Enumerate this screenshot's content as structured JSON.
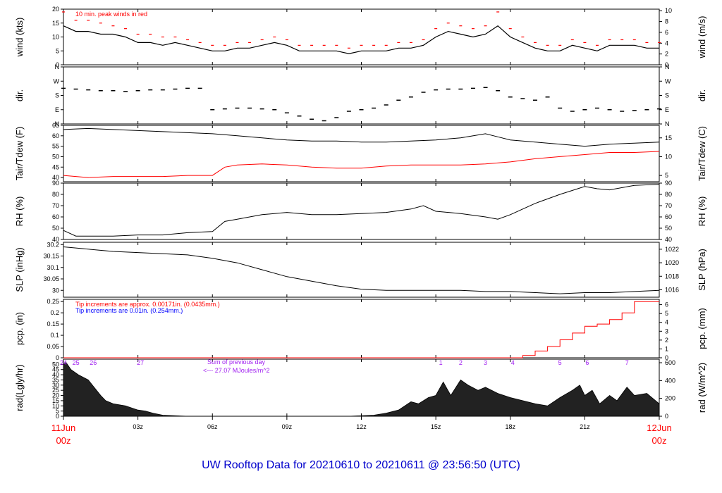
{
  "title": "UW Rooftop Data for 20210610  to  20210611 @ 23:56:50  (UTC)",
  "colors": {
    "axis": "#000000",
    "red": "#ff0000",
    "blue": "#0000ff",
    "purple": "#a020f0",
    "title": "#0000cc",
    "fill": "#222222"
  },
  "time_axis": {
    "start_label": [
      "11Jun",
      "00z"
    ],
    "end_label": [
      "12Jun",
      "00z"
    ],
    "ticks": [
      {
        "hour": 3,
        "label": "03z"
      },
      {
        "hour": 6,
        "label": "06z"
      },
      {
        "hour": 9,
        "label": "09z"
      },
      {
        "hour": 12,
        "label": "12z"
      },
      {
        "hour": 15,
        "label": "15z"
      },
      {
        "hour": 18,
        "label": "18z"
      },
      {
        "hour": 21,
        "label": "21z"
      }
    ]
  },
  "chart_data": [
    {
      "type": "line",
      "id": "wind",
      "ylabel": "wind (kts)",
      "ylabel_right": "wind (m/s)",
      "ylim": [
        0,
        20
      ],
      "yticks": [
        0,
        5,
        10,
        15,
        20
      ],
      "right_scale": 1.9438,
      "right_ticks": [
        0,
        2,
        4,
        6,
        8,
        10
      ],
      "annotation": "10 min. peak winds in red",
      "series": [
        {
          "style": "mean",
          "x": [
            0,
            0.5,
            1,
            1.5,
            2,
            2.5,
            3,
            3.5,
            4,
            4.5,
            5,
            5.5,
            6,
            6.5,
            7,
            7.5,
            8,
            8.5,
            9,
            9.5,
            10,
            10.5,
            11,
            11.5,
            12,
            12.5,
            13,
            13.5,
            14,
            14.5,
            15,
            15.5,
            16,
            16.5,
            17,
            17.5,
            18,
            18.5,
            19,
            19.5,
            20,
            20.5,
            21,
            21.5,
            22,
            22.5,
            23,
            23.5,
            24
          ],
          "y": [
            14,
            12,
            12,
            11,
            11,
            10,
            8,
            8,
            7,
            8,
            7,
            6,
            5,
            5,
            6,
            6,
            7,
            8,
            7,
            5,
            5,
            5,
            5,
            4,
            5,
            5,
            5,
            6,
            6,
            7,
            10,
            12,
            11,
            10,
            11,
            14,
            10,
            8,
            6,
            5,
            5,
            7,
            6,
            5,
            7,
            7,
            7,
            6,
            6
          ]
        },
        {
          "style": "peak",
          "x": [
            0,
            0.5,
            1,
            1.5,
            2,
            2.5,
            3,
            3.5,
            4,
            4.5,
            5,
            5.5,
            6,
            6.5,
            7,
            7.5,
            8,
            8.5,
            9,
            9.5,
            10,
            10.5,
            11,
            11.5,
            12,
            12.5,
            13,
            13.5,
            14,
            14.5,
            15,
            15.5,
            16,
            16.5,
            17,
            17.5,
            18,
            18.5,
            19,
            19.5,
            20,
            20.5,
            21,
            21.5,
            22,
            22.5,
            23,
            23.5,
            24
          ],
          "y": [
            19,
            16,
            16,
            15,
            14,
            13,
            11,
            11,
            10,
            10,
            9,
            8,
            7,
            7,
            8,
            8,
            9,
            10,
            9,
            7,
            7,
            7,
            7,
            6,
            7,
            7,
            7,
            8,
            8,
            9,
            13,
            15,
            14,
            13,
            14,
            19,
            13,
            10,
            8,
            7,
            7,
            9,
            8,
            7,
            9,
            9,
            9,
            8,
            8
          ]
        }
      ]
    },
    {
      "type": "scatter",
      "id": "dir",
      "ylabel": "dir.",
      "ylabel_right": "dir.",
      "ylim": [
        0,
        360
      ],
      "ytick_labels": [
        "N",
        "E",
        "S",
        "W",
        "N"
      ],
      "x": [
        0,
        0.5,
        1,
        1.5,
        2,
        2.5,
        3,
        3.5,
        4,
        4.5,
        5,
        5.5,
        6,
        6.5,
        7,
        7.5,
        8,
        8.5,
        9,
        9.5,
        10,
        10.5,
        11,
        11.5,
        12,
        12.5,
        13,
        13.5,
        14,
        14.5,
        15,
        15.5,
        16,
        16.5,
        17,
        17.5,
        18,
        18.5,
        19,
        19.5,
        20,
        20.5,
        21,
        21.5,
        22,
        22.5,
        23,
        23.5,
        24
      ],
      "y": [
        225,
        220,
        215,
        210,
        210,
        205,
        210,
        215,
        215,
        220,
        225,
        225,
        90,
        95,
        100,
        100,
        95,
        90,
        70,
        50,
        30,
        20,
        40,
        80,
        90,
        100,
        120,
        150,
        170,
        200,
        215,
        220,
        220,
        225,
        230,
        210,
        170,
        160,
        150,
        170,
        100,
        80,
        90,
        100,
        90,
        80,
        85,
        90,
        95
      ]
    },
    {
      "type": "line",
      "id": "temp",
      "ylabel": "Tair/Tdew (F)",
      "ylabel_right": "Tair/Tdew (C)",
      "ylim": [
        38,
        65
      ],
      "yticks": [
        40,
        45,
        50,
        55,
        60,
        65
      ],
      "right_ticks": [
        5,
        10,
        15
      ],
      "series": [
        {
          "style": "tair",
          "x": [
            0,
            1,
            2,
            3,
            4,
            5,
            6,
            7,
            8,
            9,
            10,
            11,
            12,
            13,
            14,
            15,
            16,
            17,
            17.5,
            18,
            19,
            20,
            21,
            22,
            23,
            24
          ],
          "y": [
            63,
            63.5,
            63,
            62.5,
            62,
            61.5,
            61,
            60,
            59,
            58,
            57.5,
            57.5,
            57,
            57,
            57.5,
            58,
            59,
            61,
            59.5,
            58,
            57,
            56,
            55,
            56,
            56.5,
            57
          ]
        },
        {
          "style": "tdew",
          "x": [
            0,
            1,
            2,
            3,
            4,
            5,
            6,
            6.5,
            7,
            8,
            9,
            10,
            11,
            12,
            13,
            14,
            15,
            16,
            17,
            18,
            19,
            20,
            21,
            22,
            23,
            24
          ],
          "y": [
            41,
            40,
            40.5,
            40.5,
            40.5,
            41,
            41,
            45,
            46,
            46.5,
            46,
            45,
            44.5,
            44.5,
            45.5,
            46,
            46,
            46,
            46.5,
            47.5,
            49,
            50,
            51,
            52,
            52,
            52.5
          ]
        }
      ]
    },
    {
      "type": "line",
      "id": "rh",
      "ylabel": "RH (%)",
      "ylabel_right": "RH (%)",
      "ylim": [
        40,
        90
      ],
      "yticks": [
        40,
        50,
        60,
        70,
        80,
        90
      ],
      "x": [
        0,
        0.5,
        1,
        2,
        3,
        4,
        5,
        6,
        6.5,
        7,
        8,
        9,
        10,
        11,
        12,
        13,
        14,
        14.5,
        15,
        16,
        17,
        17.5,
        18,
        18.5,
        19,
        20,
        21,
        21.5,
        22,
        23,
        24
      ],
      "y": [
        48,
        43,
        43,
        43,
        44,
        44,
        46,
        47,
        56,
        58,
        62,
        64,
        62,
        62,
        63,
        64,
        67,
        70,
        65,
        63,
        60,
        58,
        62,
        67,
        72,
        80,
        87,
        85,
        84,
        88,
        89
      ]
    },
    {
      "type": "line",
      "id": "slp",
      "ylabel": "SLP (inHg)",
      "ylabel_right": "SLP (hPa)",
      "ylim": [
        29.97,
        30.21
      ],
      "yticks": [
        30.0,
        30.05,
        30.1,
        30.15,
        30.2
      ],
      "right_ticks": [
        1016,
        1018,
        1020,
        1022
      ],
      "x": [
        0,
        1,
        2,
        3,
        4,
        5,
        6,
        7,
        8,
        9,
        10,
        11,
        12,
        13,
        14,
        15,
        16,
        17,
        18,
        19,
        20,
        21,
        22,
        23,
        24
      ],
      "y": [
        30.19,
        30.18,
        30.17,
        30.165,
        30.16,
        30.155,
        30.14,
        30.12,
        30.09,
        30.06,
        30.04,
        30.02,
        30.005,
        30.0,
        30.0,
        30.0,
        30.0,
        29.995,
        29.995,
        29.99,
        29.985,
        29.99,
        29.99,
        29.995,
        30.0
      ]
    },
    {
      "type": "area",
      "id": "pcp",
      "ylabel": "pcp. (in)",
      "ylabel_right": "pcp. (mm)",
      "ylim": [
        0,
        0.26
      ],
      "yticks": [
        0.0,
        0.05,
        0.1,
        0.15,
        0.2,
        0.25
      ],
      "right_ticks": [
        0,
        1,
        2,
        3,
        4,
        5,
        6
      ],
      "annotations": [
        "Tip increments are approx. 0.00171in. (0.0435mm.)",
        "Tip increments are 0.01in. (0.254mm.)"
      ],
      "x": [
        0,
        18.2,
        18.5,
        19,
        19.5,
        20,
        20.5,
        21,
        21.5,
        22,
        22.5,
        23,
        23.5,
        24
      ],
      "y": [
        0,
        0,
        0.01,
        0.03,
        0.05,
        0.08,
        0.11,
        0.14,
        0.15,
        0.17,
        0.2,
        0.25,
        0.25,
        0.25
      ]
    },
    {
      "type": "area",
      "id": "rad",
      "ylabel": "rad(Lgly/hr)",
      "ylabel_right": "rad (W/m^2)",
      "ylim": [
        0,
        55
      ],
      "yticks": [
        0,
        5,
        10,
        15,
        20,
        25,
        30,
        35,
        40,
        45,
        50
      ],
      "right_scale": 11.63,
      "right_ticks": [
        0,
        200,
        400,
        600
      ],
      "annotations": [
        "Sum of previous day",
        "<--- 27.07 MJoules/m^2"
      ],
      "hour_markers": [
        {
          "hour": 0,
          "label": "24"
        },
        {
          "hour": 0.5,
          "label": "25"
        },
        {
          "hour": 1.2,
          "label": "26"
        },
        {
          "hour": 3.1,
          "label": "27"
        },
        {
          "hour": 15.2,
          "label": "1"
        },
        {
          "hour": 16,
          "label": "2"
        },
        {
          "hour": 17,
          "label": "3"
        },
        {
          "hour": 18.1,
          "label": "4"
        },
        {
          "hour": 20,
          "label": "5"
        },
        {
          "hour": 21.1,
          "label": "6"
        },
        {
          "hour": 22.7,
          "label": "7"
        }
      ],
      "x": [
        0,
        0.1,
        0.3,
        0.6,
        1,
        1.5,
        1.7,
        2,
        2.5,
        3,
        3.3,
        3.6,
        4,
        4.5,
        5,
        11.5,
        12,
        12.5,
        13,
        13.5,
        14,
        14.3,
        14.7,
        15,
        15.3,
        15.6,
        16,
        16.3,
        16.7,
        17,
        17.5,
        18,
        18.5,
        19,
        19.5,
        20,
        20.5,
        20.8,
        21,
        21.3,
        21.6,
        22,
        22.3,
        22.7,
        23,
        23.5,
        24
      ],
      "y": [
        50,
        52,
        45,
        40,
        35,
        20,
        15,
        12,
        10,
        6,
        5,
        3,
        1,
        0.5,
        0,
        0,
        0.5,
        1,
        3,
        6,
        14,
        12,
        18,
        20,
        33,
        20,
        35,
        30,
        25,
        28,
        22,
        18,
        15,
        12,
        10,
        18,
        25,
        30,
        20,
        25,
        12,
        20,
        15,
        28,
        20,
        22,
        12
      ]
    }
  ]
}
